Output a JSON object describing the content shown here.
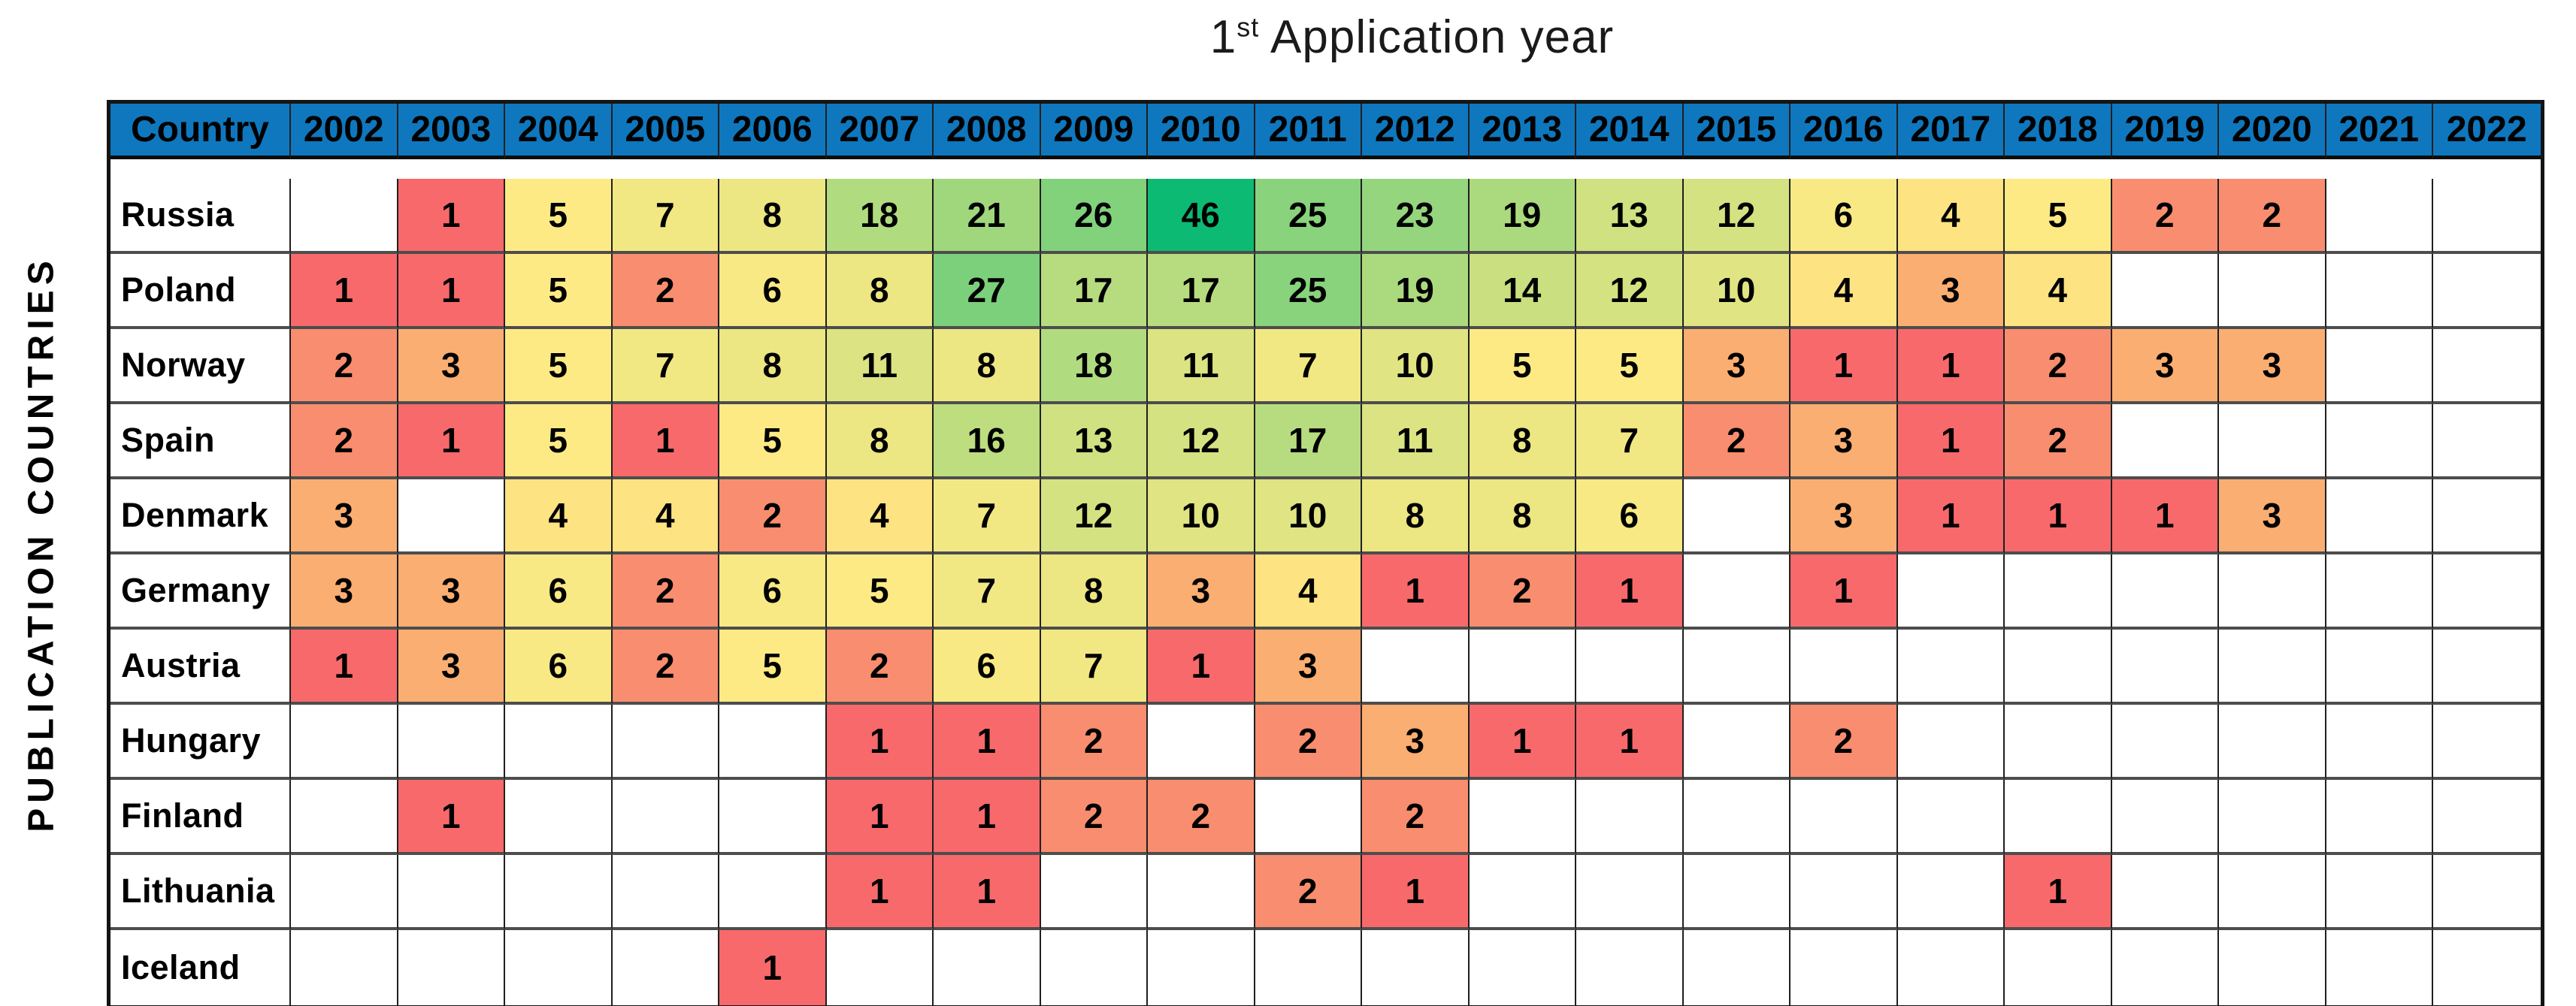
{
  "title": {
    "number": "1",
    "ordinal": "st",
    "text": " Application year"
  },
  "y_axis_label": "PUBLICATION COUNTRIES",
  "header": {
    "country_label": "Country"
  },
  "chart_data": {
    "type": "heatmap",
    "title": "1st Application year",
    "xlabel": "1st Application year",
    "ylabel": "PUBLICATION COUNTRIES",
    "columns": [
      "2002",
      "2003",
      "2004",
      "2005",
      "2006",
      "2007",
      "2008",
      "2009",
      "2010",
      "2011",
      "2012",
      "2013",
      "2014",
      "2015",
      "2016",
      "2017",
      "2018",
      "2019",
      "2020",
      "2021",
      "2022"
    ],
    "rows": [
      {
        "country": "Russia",
        "values": [
          null,
          1,
          5,
          7,
          8,
          18,
          21,
          26,
          46,
          25,
          23,
          19,
          13,
          12,
          6,
          4,
          5,
          2,
          2,
          null,
          null
        ]
      },
      {
        "country": "Poland",
        "values": [
          1,
          1,
          5,
          2,
          6,
          8,
          27,
          17,
          17,
          25,
          19,
          14,
          12,
          10,
          4,
          3,
          4,
          null,
          null,
          null,
          null
        ]
      },
      {
        "country": "Norway",
        "values": [
          2,
          3,
          5,
          7,
          8,
          11,
          8,
          18,
          11,
          7,
          10,
          5,
          5,
          3,
          1,
          1,
          2,
          3,
          3,
          null,
          null
        ]
      },
      {
        "country": "Spain",
        "values": [
          2,
          1,
          5,
          1,
          5,
          8,
          16,
          13,
          12,
          17,
          11,
          8,
          7,
          2,
          3,
          1,
          2,
          null,
          null,
          null,
          null
        ]
      },
      {
        "country": "Denmark",
        "values": [
          3,
          null,
          4,
          4,
          2,
          4,
          7,
          12,
          10,
          10,
          8,
          8,
          6,
          null,
          3,
          1,
          1,
          1,
          3,
          null,
          null
        ]
      },
      {
        "country": "Germany",
        "values": [
          3,
          3,
          6,
          2,
          6,
          5,
          7,
          8,
          3,
          4,
          1,
          2,
          1,
          null,
          1,
          null,
          null,
          null,
          null,
          null,
          null
        ]
      },
      {
        "country": "Austria",
        "values": [
          1,
          3,
          6,
          2,
          5,
          2,
          6,
          7,
          1,
          3,
          null,
          null,
          null,
          null,
          null,
          null,
          null,
          null,
          null,
          null,
          null
        ]
      },
      {
        "country": "Hungary",
        "values": [
          null,
          null,
          null,
          null,
          null,
          1,
          1,
          2,
          null,
          2,
          3,
          1,
          1,
          null,
          2,
          null,
          null,
          null,
          null,
          null,
          null
        ]
      },
      {
        "country": "Finland",
        "values": [
          null,
          1,
          null,
          null,
          null,
          1,
          1,
          2,
          2,
          null,
          2,
          null,
          null,
          null,
          null,
          null,
          null,
          null,
          null,
          null,
          null
        ]
      },
      {
        "country": "Lithuania",
        "values": [
          null,
          null,
          null,
          null,
          null,
          1,
          1,
          null,
          null,
          2,
          1,
          null,
          null,
          null,
          null,
          null,
          1,
          null,
          null,
          null,
          null
        ]
      },
      {
        "country": "Iceland",
        "values": [
          null,
          null,
          null,
          null,
          1,
          null,
          null,
          null,
          null,
          null,
          null,
          null,
          null,
          null,
          null,
          null,
          null,
          null,
          null,
          null,
          null
        ]
      }
    ],
    "value_range": [
      1,
      46
    ],
    "legend_position": "none",
    "grid": true,
    "header_bg": "#0F77BD",
    "empty_cell_color": "#FFFFFF",
    "color_scale_anchors": [
      {
        "value": 1,
        "color": "#F8696B"
      },
      {
        "value": 2,
        "color": "#F98D6F"
      },
      {
        "value": 3,
        "color": "#FBAE72"
      },
      {
        "value": 4,
        "color": "#FDE381"
      },
      {
        "value": 5,
        "color": "#FEEA84"
      },
      {
        "value": 46,
        "color": "#0CBA73"
      }
    ]
  }
}
